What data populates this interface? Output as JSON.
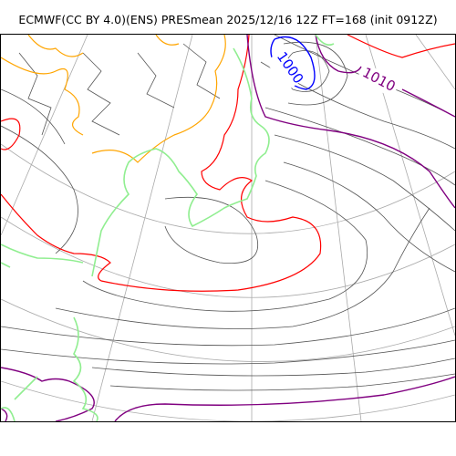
{
  "title": "ECMWF(CC BY 4.0)(ENS) PRESmean 2025/12/16 12Z FT=168 (init 0912Z)",
  "isobar_labels": [
    {
      "value": "1000",
      "color": "#0000ff"
    },
    {
      "value": "1010",
      "color": "#800080"
    }
  ],
  "colors": {
    "coastline": "#90ee90",
    "orange_contour": "#ffa500",
    "red_contour": "#ff0000",
    "purple_contour": "#800080",
    "blue_contour": "#0000ff",
    "isobar": "#555555",
    "graticule": "#aaaaaa"
  }
}
